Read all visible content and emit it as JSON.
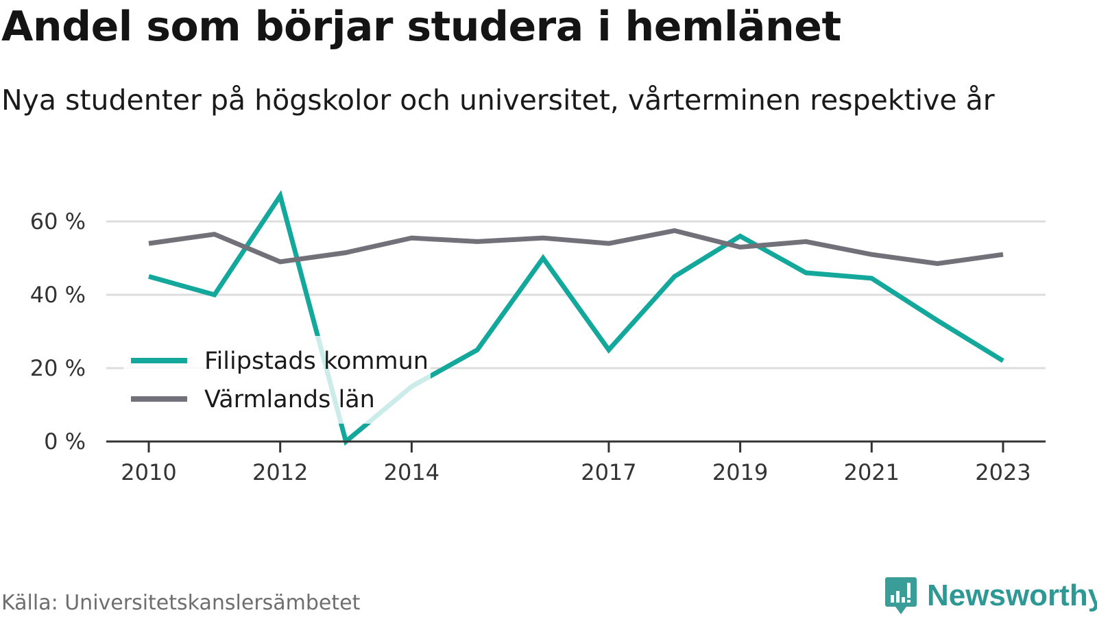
{
  "header": {
    "title": "Andel som börjar studera i hemlänet",
    "subtitle": "Nya studenter på högskolor och universitet, vårterminen respektive år"
  },
  "footer": {
    "source": "Källa: Universitetskanslersämbetet",
    "brand": "Newsworthy",
    "brand_icon": "newsworthy-logo-icon"
  },
  "colors": {
    "series_filipstad": "#14a89c",
    "series_varmland": "#727078",
    "grid": "#dddddd",
    "axis": "#333333",
    "brand": "#2e9994"
  },
  "chart_data": {
    "type": "line",
    "x": [
      2010,
      2011,
      2012,
      2013,
      2014,
      2015,
      2016,
      2017,
      2018,
      2019,
      2020,
      2021,
      2022,
      2023
    ],
    "x_tick_labels": [
      "2010",
      "2012",
      "2014",
      "2017",
      "2019",
      "2021",
      "2023"
    ],
    "y_tick_labels": [
      "0 %",
      "20 %",
      "40 %",
      "60 %"
    ],
    "y_ticks": [
      0,
      20,
      40,
      60
    ],
    "ylim": [
      0,
      70
    ],
    "grid": true,
    "legend_position": "bottom-left",
    "series": [
      {
        "name": "Filipstads kommun",
        "color": "#14a89c",
        "values": [
          45,
          40,
          67,
          0,
          15,
          25,
          50,
          25,
          45,
          56,
          46,
          44.5,
          33,
          22
        ]
      },
      {
        "name": "Värmlands län",
        "color": "#727078",
        "values": [
          54,
          56.5,
          49,
          51.5,
          55.5,
          54.5,
          55.5,
          54,
          57.5,
          53,
          54.5,
          51,
          48.5,
          51
        ]
      }
    ]
  }
}
